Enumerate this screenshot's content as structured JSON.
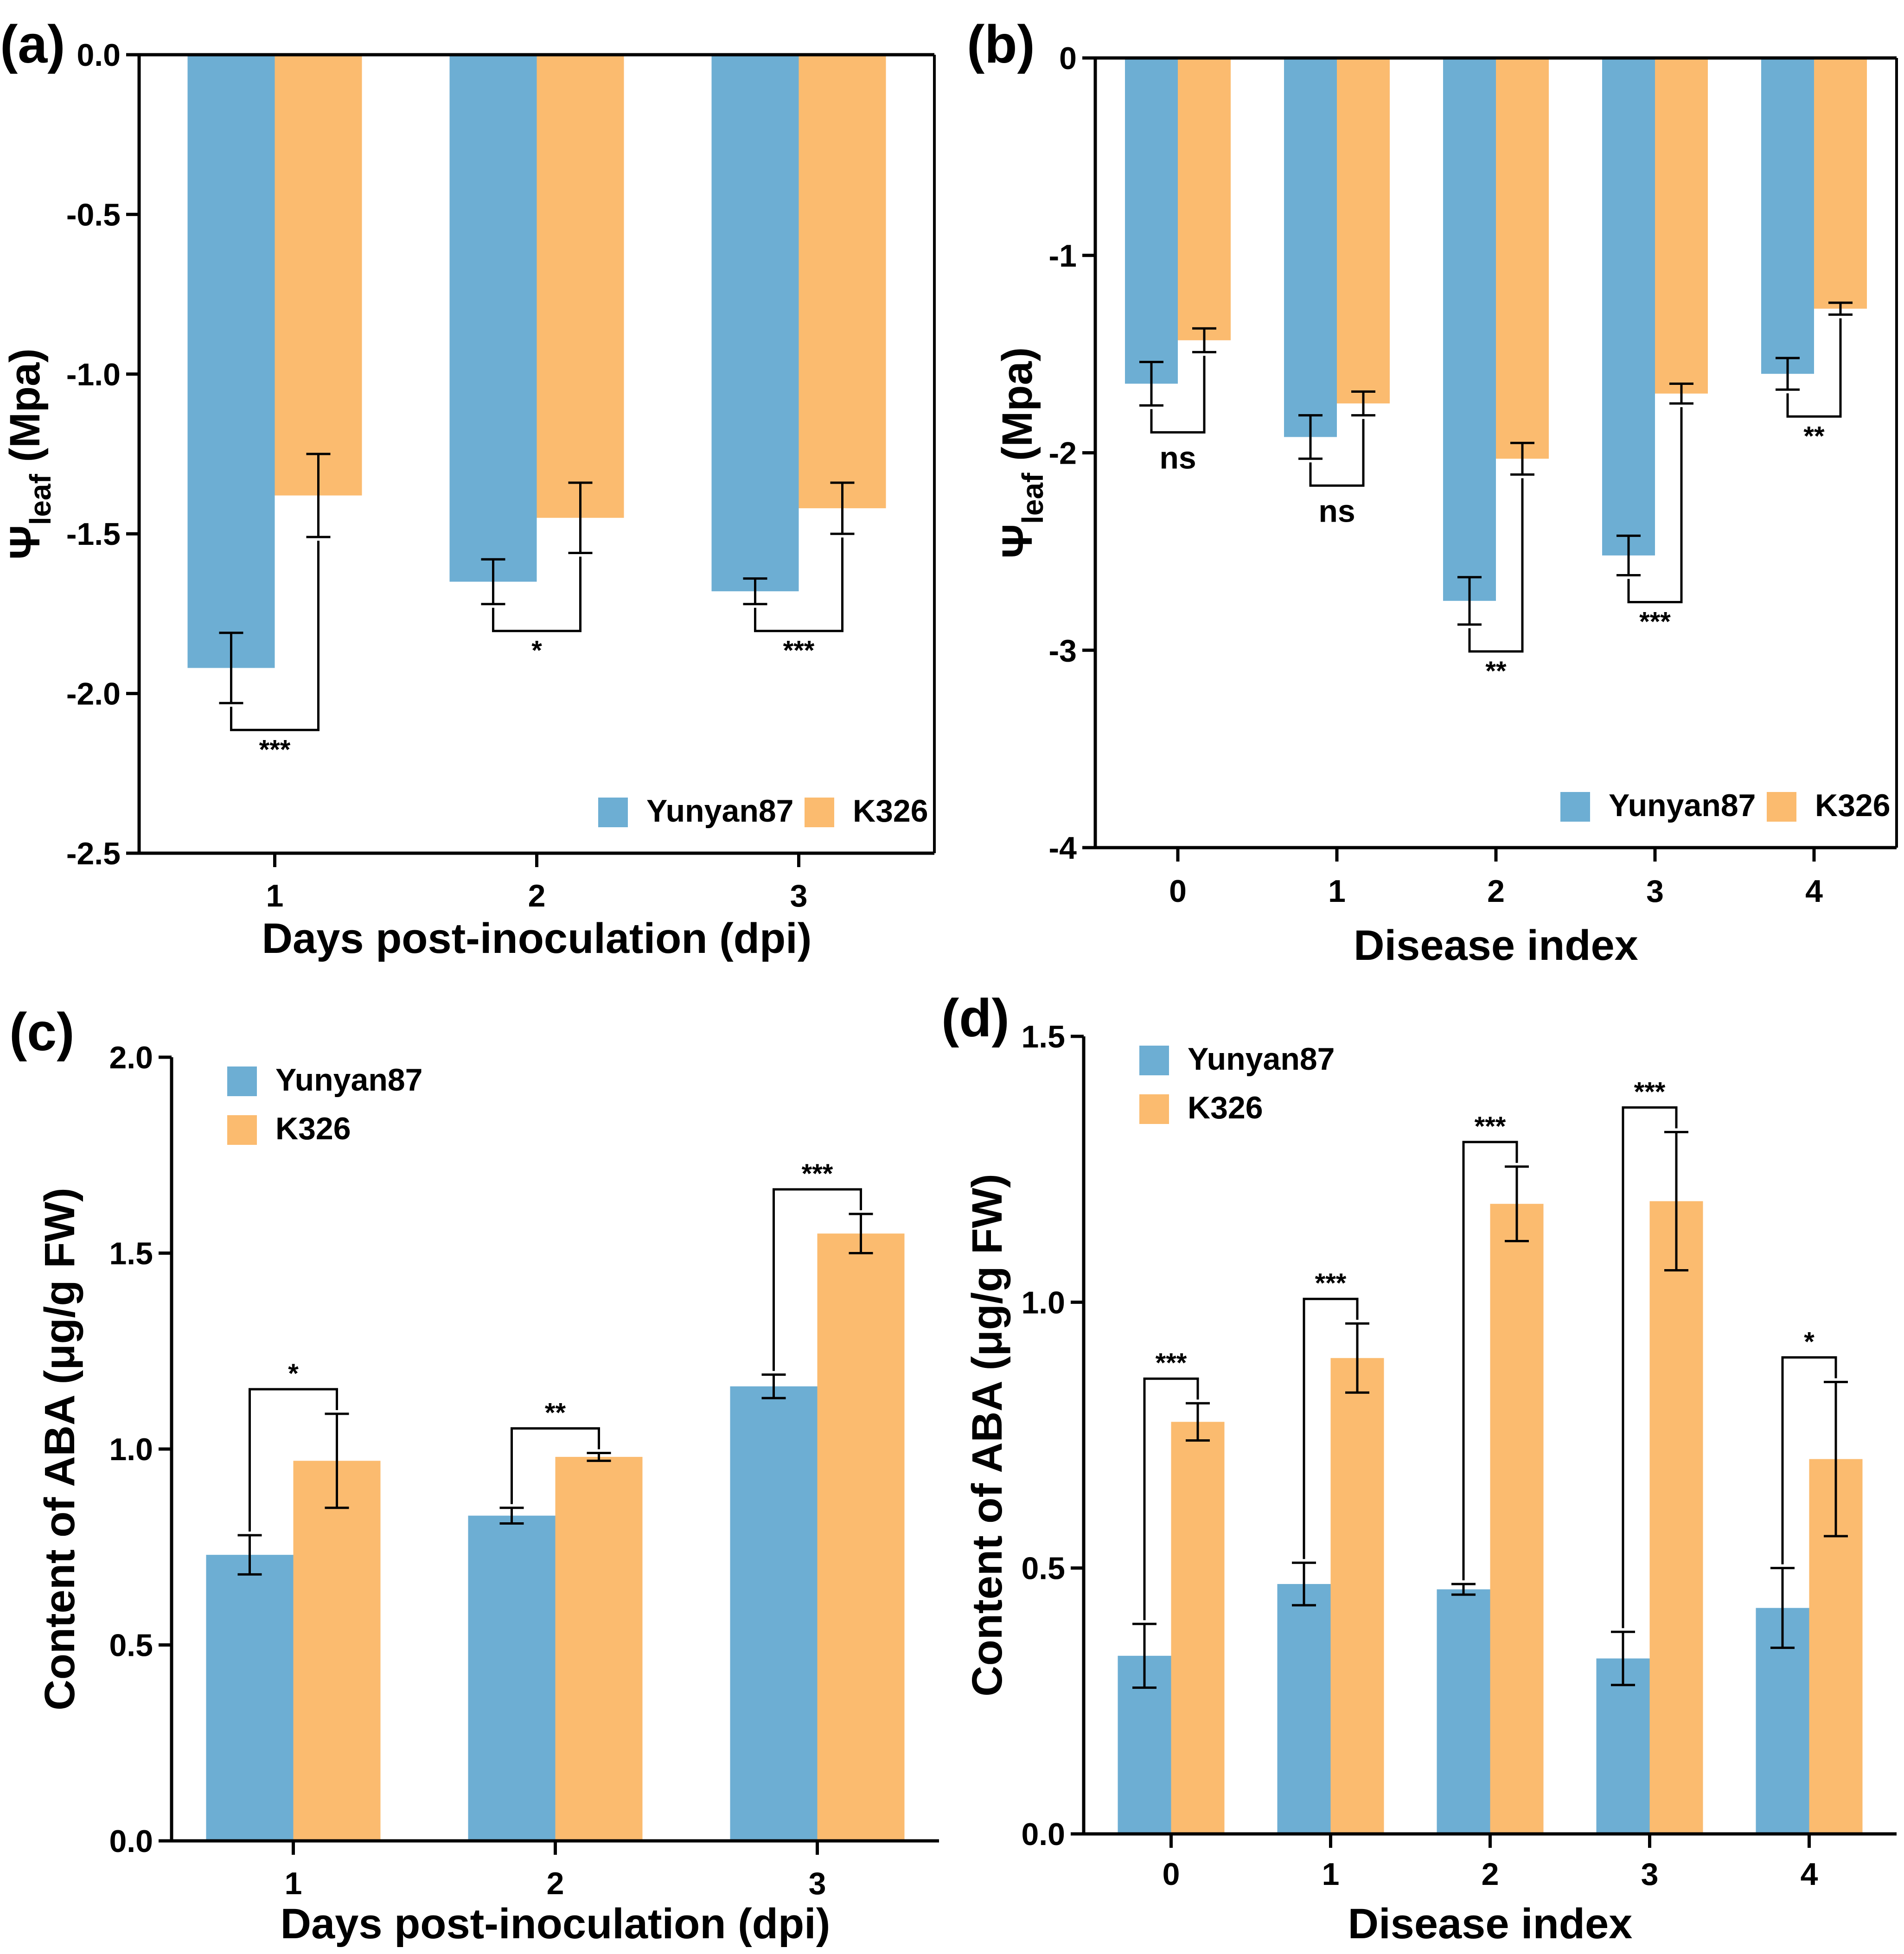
{
  "figure": {
    "description_title": ""
  },
  "colors": {
    "Yunyan87": "#6daed3",
    "K326": "#fbbb6f",
    "axis": "#000000"
  },
  "chart_data": [
    {
      "id": "a",
      "type": "bar",
      "panel_label": "(a)",
      "orientation": "down",
      "categories": [
        "1",
        "2",
        "3"
      ],
      "xlabel": "Days post-inoculation (dpi)",
      "ylabel_main": "Ψ",
      "ylabel_sub": "leaf",
      "ylabel_unit": " (Mpa)",
      "ylim": [
        -2.5,
        0
      ],
      "yticks": [
        0,
        -0.5,
        -1,
        -1.5,
        -2,
        -2.5
      ],
      "ytick_labels": [
        "0.0",
        "-0.5",
        "-1.0",
        "-1.5",
        "-2.0",
        "-2.5"
      ],
      "legend": {
        "position": "bottom-right",
        "layout": "horizontal"
      },
      "series": [
        {
          "name": "Yunyan87",
          "values": [
            -1.92,
            -1.65,
            -1.68
          ],
          "errors": [
            0.11,
            0.07,
            0.04
          ]
        },
        {
          "name": "K326",
          "values": [
            -1.38,
            -1.45,
            -1.42
          ],
          "errors": [
            0.13,
            0.11,
            0.08
          ]
        }
      ],
      "significance": [
        "***",
        "*",
        "***"
      ],
      "bracket_side": "below"
    },
    {
      "id": "b",
      "type": "bar",
      "panel_label": "(b)",
      "orientation": "down",
      "categories": [
        "0",
        "1",
        "2",
        "3",
        "4"
      ],
      "xlabel": "Disease index",
      "ylabel_main": "Ψ",
      "ylabel_sub": "leaf",
      "ylabel_unit": " (Mpa)",
      "ylim": [
        -4,
        0
      ],
      "yticks": [
        0,
        -1,
        -2,
        -3,
        -4
      ],
      "ytick_labels": [
        "0",
        "-1",
        "-2",
        "-3",
        "-4"
      ],
      "legend": {
        "position": "bottom-right",
        "layout": "horizontal"
      },
      "series": [
        {
          "name": "Yunyan87",
          "values": [
            -1.65,
            -1.92,
            -2.75,
            -2.52,
            -1.6
          ],
          "errors": [
            0.11,
            0.11,
            0.12,
            0.1,
            0.08
          ]
        },
        {
          "name": "K326",
          "values": [
            -1.43,
            -1.75,
            -2.03,
            -1.7,
            -1.27
          ],
          "errors": [
            0.06,
            0.06,
            0.08,
            0.05,
            0.03
          ]
        }
      ],
      "significance": [
        "ns",
        "ns",
        "**",
        "***",
        "**"
      ],
      "bracket_side": "below"
    },
    {
      "id": "c",
      "type": "bar",
      "panel_label": "(c)",
      "orientation": "up",
      "categories": [
        "1",
        "2",
        "3"
      ],
      "xlabel": "Days post-inoculation (dpi)",
      "ylabel_main": "Content of ABA (μg/g FW)",
      "ylabel_sub": "",
      "ylabel_unit": "",
      "ylim": [
        0,
        2
      ],
      "yticks": [
        0,
        0.5,
        1,
        1.5,
        2
      ],
      "ytick_labels": [
        "0.0",
        "0.5",
        "1.0",
        "1.5",
        "2.0"
      ],
      "legend": {
        "position": "top-left",
        "layout": "vertical"
      },
      "series": [
        {
          "name": "Yunyan87",
          "values": [
            0.73,
            0.83,
            1.16
          ],
          "errors": [
            0.05,
            0.02,
            0.03
          ]
        },
        {
          "name": "K326",
          "values": [
            0.97,
            0.98,
            1.55
          ],
          "errors": [
            0.12,
            0.01,
            0.05
          ]
        }
      ],
      "significance": [
        "*",
        "**",
        "***"
      ],
      "bracket_side": "above"
    },
    {
      "id": "d",
      "type": "bar",
      "panel_label": "(d)",
      "orientation": "up",
      "categories": [
        "0",
        "1",
        "2",
        "3",
        "4"
      ],
      "xlabel": "Disease index",
      "ylabel_main": "Content of ABA (μg/g FW)",
      "ylabel_sub": "",
      "ylabel_unit": "",
      "ylim": [
        0,
        1.5
      ],
      "yticks": [
        0,
        0.5,
        1,
        1.5
      ],
      "ytick_labels": [
        "0.0",
        "0.5",
        "1.0",
        "1.5"
      ],
      "legend": {
        "position": "top-left",
        "layout": "vertical"
      },
      "series": [
        {
          "name": "Yunyan87",
          "values": [
            0.335,
            0.47,
            0.46,
            0.33,
            0.425
          ],
          "errors": [
            0.06,
            0.04,
            0.01,
            0.05,
            0.075
          ]
        },
        {
          "name": "K326",
          "values": [
            0.775,
            0.895,
            1.185,
            1.19,
            0.705
          ],
          "errors": [
            0.035,
            0.065,
            0.07,
            0.13,
            0.145
          ]
        }
      ],
      "significance": [
        "***",
        "***",
        "***",
        "***",
        "*"
      ],
      "bracket_side": "above"
    }
  ]
}
